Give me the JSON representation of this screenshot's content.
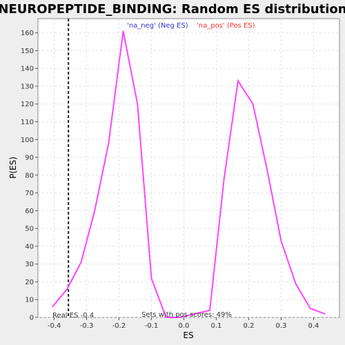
{
  "chart_data": {
    "type": "line",
    "title": "NEUROPEPTIDE_BINDING: Random ES distribution",
    "xlabel": "ES",
    "ylabel": "P(ES)",
    "xlim": [
      -0.45,
      0.48
    ],
    "ylim": [
      0,
      168
    ],
    "x_ticks": [
      -0.4,
      -0.3,
      -0.2,
      -0.1,
      0.0,
      0.1,
      0.2,
      0.3,
      0.4
    ],
    "x_tick_labels": [
      "-0.4",
      "-0.3",
      "-0.2",
      "-0.1",
      "0.0",
      "0.1",
      "0.2",
      "0.3",
      "0.4"
    ],
    "y_ticks": [
      0,
      10,
      20,
      30,
      40,
      50,
      60,
      70,
      80,
      90,
      100,
      110,
      120,
      130,
      140,
      150,
      160
    ],
    "y_tick_labels": [
      "0",
      "10",
      "20",
      "30",
      "40",
      "50",
      "60",
      "70",
      "80",
      "90",
      "100",
      "110",
      "120",
      "130",
      "140",
      "150",
      "160"
    ],
    "grid": true,
    "legend": [
      {
        "label": "'na_neg' (Neg ES)",
        "color": "#3333cc"
      },
      {
        "label": "'na_pos' (Pos ES)",
        "color": "#ee3333"
      }
    ],
    "series": [
      {
        "color": "#ff44ff",
        "x": [
          -0.405,
          -0.36,
          -0.317,
          -0.275,
          -0.232,
          -0.187,
          -0.143,
          -0.1,
          -0.055,
          -0.012,
          0.08,
          0.124,
          0.167,
          0.213,
          0.258,
          0.3,
          0.345,
          0.39,
          0.435
        ],
        "y": [
          6,
          16,
          31,
          60,
          98,
          161,
          120,
          22,
          0,
          0,
          4,
          78,
          133,
          120,
          82,
          43,
          19,
          5,
          2
        ]
      }
    ],
    "real_es": -0.356,
    "annotations": {
      "real_es_label": "Real ES -0.4",
      "pos_scores_label": "Sets with pos scores: 49%"
    }
  }
}
